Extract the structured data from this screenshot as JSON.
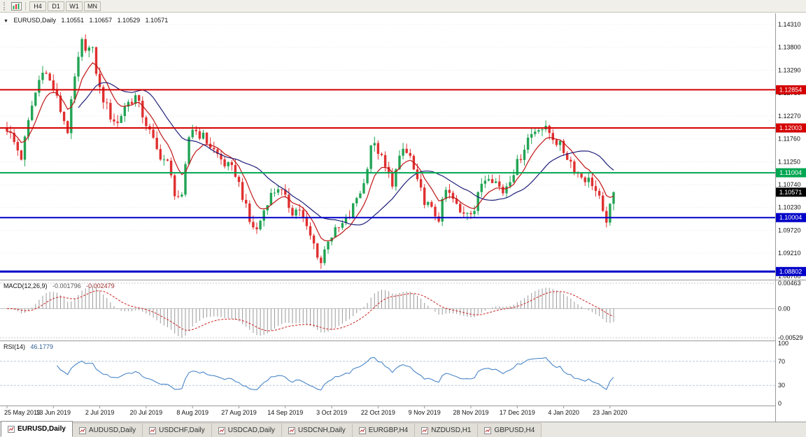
{
  "toolbar": {
    "timeframes": [
      {
        "label": "H4"
      },
      {
        "label": "D1"
      },
      {
        "label": "W1"
      },
      {
        "label": "MN"
      }
    ]
  },
  "chart_header": {
    "symbol": "EURUSD,Daily",
    "open": "1.10551",
    "high": "1.10657",
    "low": "1.10529",
    "close": "1.10571"
  },
  "indicator_headers": {
    "macd_label": "MACD(12,26,9)",
    "macd_value_main": "-0.001796",
    "macd_value_signal": "-0.002479",
    "rsi_label": "RSI(14)",
    "rsi_value": "46.1779"
  },
  "tabs": {
    "items": [
      {
        "label": "EURUSD,Daily",
        "active": true
      },
      {
        "label": "AUDUSD,Daily",
        "active": false
      },
      {
        "label": "USDCHF,Daily",
        "active": false
      },
      {
        "label": "USDCAD,Daily",
        "active": false
      },
      {
        "label": "USDCNH,Daily",
        "active": false
      },
      {
        "label": "EURGBP,H4",
        "active": false
      },
      {
        "label": "NZDUSD,H1",
        "active": false
      },
      {
        "label": "GBPUSD,H4",
        "active": false
      }
    ]
  },
  "chart_data": {
    "type": "candlestick",
    "symbol": "EURUSD",
    "period": "Daily",
    "price_axis": {
      "min": 1.0862,
      "max": 1.1456,
      "tick_labels": [
        "1.14310",
        "1.13800",
        "1.13290",
        "1.12780",
        "1.12270",
        "1.11760",
        "1.11250",
        "1.10740",
        "1.10230",
        "1.09720",
        "1.09210",
        "1.08700"
      ]
    },
    "date_axis": [
      "25 May 2019",
      "13 Jun 2019",
      "2 Jul 2019",
      "20 Jul 2019",
      "8 Aug 2019",
      "27 Aug 2019",
      "14 Sep 2019",
      "3 Oct 2019",
      "22 Oct 2019",
      "9 Nov 2019",
      "28 Nov 2019",
      "17 Dec 2019",
      "4 Jan 2020",
      "23 Jan 2020"
    ],
    "horizontal_levels": [
      {
        "price": 1.12854,
        "label": "1.12854",
        "color": "#d40000",
        "width": 2
      },
      {
        "price": 1.12003,
        "label": "1.12003",
        "color": "#d40000",
        "width": 2
      },
      {
        "price": 1.11004,
        "label": "1.11004",
        "color": "#00a651",
        "width": 2
      },
      {
        "price": 1.10004,
        "label": "1.10004",
        "color": "#0000c8",
        "width": 2
      },
      {
        "price": 1.08802,
        "label": "1.08802",
        "color": "#0000c8",
        "width": 3
      }
    ],
    "current_price": {
      "price": 1.10571,
      "label": "1.10571",
      "badge_color": "#000000"
    },
    "candles": {
      "count": 171,
      "bull_color": "#22a455",
      "bear_color": "#e03030",
      "close_anchors": [
        [
          0,
          1.12
        ],
        [
          4,
          1.1135
        ],
        [
          7,
          1.125
        ],
        [
          10,
          1.1335
        ],
        [
          13,
          1.1288
        ],
        [
          15,
          1.124
        ],
        [
          17,
          1.1195
        ],
        [
          19,
          1.131
        ],
        [
          21,
          1.139
        ],
        [
          24,
          1.137
        ],
        [
          26,
          1.1285
        ],
        [
          29,
          1.1227
        ],
        [
          31,
          1.121
        ],
        [
          33,
          1.125
        ],
        [
          36,
          1.127
        ],
        [
          39,
          1.121
        ],
        [
          42,
          1.115
        ],
        [
          45,
          1.112
        ],
        [
          47,
          1.1058
        ],
        [
          49,
          1.104
        ],
        [
          51,
          1.118
        ],
        [
          52,
          1.12
        ],
        [
          55,
          1.118
        ],
        [
          58,
          1.115
        ],
        [
          61,
          1.112
        ],
        [
          64,
          1.11
        ],
        [
          66,
          1.105
        ],
        [
          68,
          1.099
        ],
        [
          70,
          1.0972
        ],
        [
          73,
          1.104
        ],
        [
          76,
          1.107
        ],
        [
          78,
          1.104
        ],
        [
          80,
          1.1015
        ],
        [
          82,
          1.102
        ],
        [
          84,
          1.0975
        ],
        [
          86,
          1.094
        ],
        [
          88,
          1.09
        ],
        [
          90,
          1.0955
        ],
        [
          93,
          1.0975
        ],
        [
          96,
          1.1003
        ],
        [
          98,
          1.1045
        ],
        [
          100,
          1.1075
        ],
        [
          102,
          1.1165
        ],
        [
          104,
          1.115
        ],
        [
          106,
          1.111
        ],
        [
          108,
          1.108
        ],
        [
          111,
          1.1152
        ],
        [
          113,
          1.1135
        ],
        [
          115,
          1.1075
        ],
        [
          117,
          1.104
        ],
        [
          119,
          1.1015
        ],
        [
          121,
          1.1
        ],
        [
          123,
          1.106
        ],
        [
          125,
          1.104
        ],
        [
          127,
          1.101
        ],
        [
          129,
          1.1018
        ],
        [
          131,
          1.1018
        ],
        [
          133,
          1.1078
        ],
        [
          135,
          1.1098
        ],
        [
          137,
          1.108
        ],
        [
          139,
          1.1058
        ],
        [
          141,
          1.109
        ],
        [
          143,
          1.112
        ],
        [
          146,
          1.1178
        ],
        [
          149,
          1.1205
        ],
        [
          152,
          1.119
        ],
        [
          155,
          1.116
        ],
        [
          158,
          1.1125
        ],
        [
          160,
          1.1098
        ],
        [
          162,
          1.1088
        ],
        [
          164,
          1.1078
        ],
        [
          166,
          1.104
        ],
        [
          167,
          1.1005
        ],
        [
          168,
          1.0998
        ],
        [
          169,
          1.102
        ],
        [
          170,
          1.10571
        ]
      ]
    },
    "moving_averages": [
      {
        "type": "EMA",
        "period": 8,
        "color": "#c01414"
      },
      {
        "type": "SMA",
        "period": 21,
        "color": "#1f1f7a"
      }
    ],
    "macd": {
      "params": [
        12,
        26,
        9
      ],
      "histogram_color": "#9a9a9a",
      "signal_color": "#cc2222",
      "scale": {
        "max": 0.00463,
        "min": -0.00529,
        "tick_labels": [
          "0.00463",
          "0.00",
          "-0.00529"
        ]
      }
    },
    "rsi": {
      "period": 14,
      "line_color": "#4a86c8",
      "levels": [
        70,
        30
      ],
      "scale_labels": [
        "100",
        "70",
        "30",
        "0"
      ]
    }
  }
}
